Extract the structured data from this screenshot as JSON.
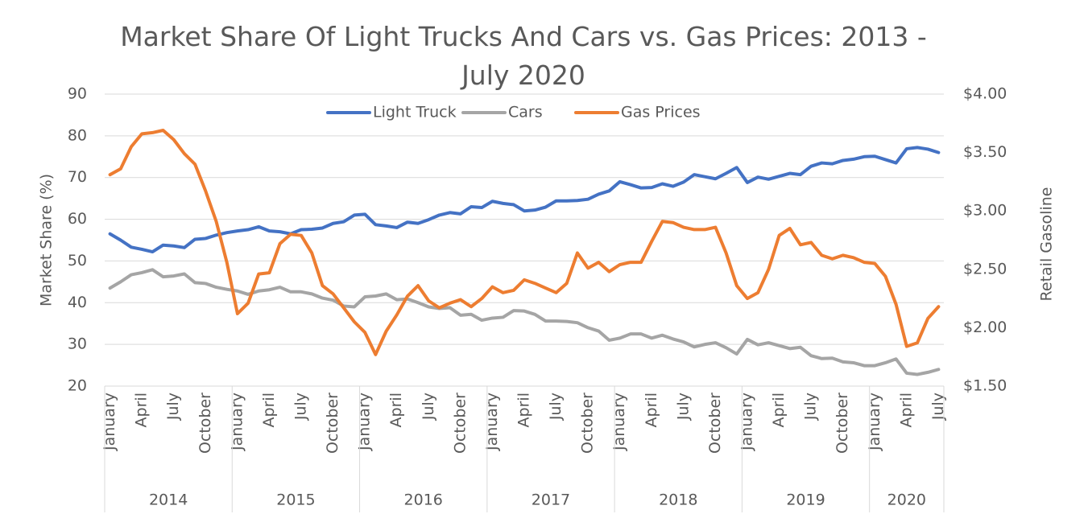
{
  "chart_data": {
    "type": "line",
    "title": "Market Share Of Light Trucks And Cars vs. Gas Prices: 2013 - July 2020",
    "y_label": "Market Share (%)",
    "y2_label": "Retail Gasoline",
    "categories": [
      "January",
      null,
      null,
      "April",
      null,
      null,
      "July",
      null,
      null,
      "October",
      null,
      null,
      "January",
      null,
      null,
      "April",
      null,
      null,
      "July",
      null,
      null,
      "October",
      null,
      null,
      "January",
      null,
      null,
      "April",
      null,
      null,
      "July",
      null,
      null,
      "October",
      null,
      null,
      "January",
      null,
      null,
      "April",
      null,
      null,
      "July",
      null,
      null,
      "October",
      null,
      null,
      "January",
      null,
      null,
      "April",
      null,
      null,
      "July",
      null,
      null,
      "October",
      null,
      null,
      "January",
      null,
      null,
      "April",
      null,
      null,
      "July",
      null,
      null,
      "October",
      null,
      null,
      "January",
      null,
      null,
      "April",
      null,
      null,
      "July"
    ],
    "years": [
      "2014",
      "2015",
      "2016",
      "2017",
      "2018",
      "2019",
      "2020"
    ],
    "series": [
      {
        "name": "Light Truck",
        "color": "#4472c4",
        "values": [
          56.5,
          55,
          53.3,
          52.8,
          52.2,
          53.8,
          53.6,
          53.2,
          55.2,
          55.4,
          56.2,
          56.8,
          57.2,
          57.5,
          58.2,
          57.2,
          57,
          56.5,
          57.5,
          57.6,
          57.9,
          59,
          59.4,
          61,
          61.2,
          58.7,
          58.4,
          58,
          59.3,
          59,
          59.9,
          61,
          61.6,
          61.3,
          63,
          62.8,
          64.3,
          63.8,
          63.5,
          62,
          62.2,
          62.9,
          64.4,
          64.4,
          64.5,
          64.8,
          66,
          66.8,
          69,
          68.3,
          67.5,
          67.6,
          68.5,
          67.9,
          68.9,
          70.7,
          70.2,
          69.7,
          71,
          72.4,
          68.8,
          70.1,
          69.6,
          70.3,
          71,
          70.7,
          72.7,
          73.5,
          73.3,
          74.1,
          74.4,
          75,
          75.1,
          74.3,
          73.5,
          76.9,
          77.2,
          76.8,
          76
        ]
      },
      {
        "name": "Cars",
        "color": "#a5a5a5",
        "values": [
          43.5,
          45,
          46.7,
          47.2,
          47.9,
          46.2,
          46.4,
          46.9,
          44.8,
          44.6,
          43.7,
          43.2,
          42.8,
          42,
          42.8,
          43.1,
          43.7,
          42.6,
          42.6,
          42.1,
          41.1,
          40.6,
          39.2,
          39,
          41.4,
          41.6,
          42.1,
          40.7,
          40.9,
          40,
          39,
          38.6,
          38.8,
          37,
          37.2,
          35.8,
          36.3,
          36.5,
          38.1,
          38,
          37.2,
          35.6,
          35.6,
          35.5,
          35.2,
          34,
          33.2,
          31,
          31.5,
          32.5,
          32.5,
          31.5,
          32.2,
          31.3,
          30.6,
          29.4,
          30,
          30.4,
          29.2,
          27.7,
          31.2,
          29.9,
          30.4,
          29.7,
          29,
          29.3,
          27.3,
          26.6,
          26.7,
          25.8,
          25.6,
          24.9,
          24.9,
          25.6,
          26.5,
          23.1,
          22.8,
          23.3,
          24
        ]
      },
      {
        "name": "Gas Prices",
        "color": "#ed7d31",
        "axis": "y2",
        "values": [
          3.31,
          3.36,
          3.55,
          3.66,
          3.67,
          3.69,
          3.61,
          3.49,
          3.4,
          3.17,
          2.91,
          2.56,
          2.12,
          2.21,
          2.46,
          2.47,
          2.72,
          2.8,
          2.79,
          2.64,
          2.36,
          2.29,
          2.17,
          2.05,
          1.96,
          1.77,
          1.97,
          2.11,
          2.27,
          2.36,
          2.23,
          2.17,
          2.21,
          2.24,
          2.18,
          2.25,
          2.35,
          2.3,
          2.32,
          2.41,
          2.38,
          2.34,
          2.3,
          2.38,
          2.64,
          2.51,
          2.56,
          2.48,
          2.54,
          2.56,
          2.56,
          2.74,
          2.91,
          2.9,
          2.86,
          2.84,
          2.84,
          2.86,
          2.64,
          2.36,
          2.25,
          2.3,
          2.5,
          2.79,
          2.85,
          2.71,
          2.73,
          2.62,
          2.59,
          2.62,
          2.6,
          2.56,
          2.55,
          2.44,
          2.2,
          1.84,
          1.87,
          2.08,
          2.18
        ]
      }
    ],
    "ylim": [
      20,
      90
    ],
    "yticks": [
      20,
      30,
      40,
      50,
      60,
      70,
      80,
      90
    ],
    "y2lim": [
      1.5,
      4
    ],
    "y2ticks": [
      {
        "value": 1.5,
        "label": "$1.50"
      },
      {
        "value": 2,
        "label": "$2.00"
      },
      {
        "value": 2.5,
        "label": "$2.50"
      },
      {
        "value": 3,
        "label": "$3.00"
      },
      {
        "value": 3.5,
        "label": "$3.50"
      },
      {
        "value": 4,
        "label": "$4.00"
      }
    ],
    "grid": true,
    "legend": "top"
  }
}
